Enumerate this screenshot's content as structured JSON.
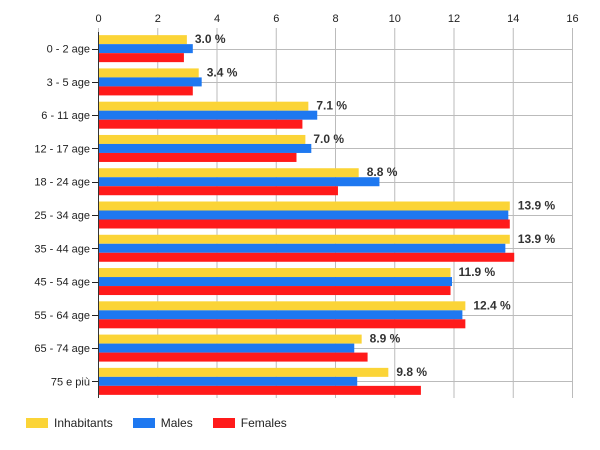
{
  "chart_data": {
    "type": "bar",
    "orientation": "horizontal",
    "title": "",
    "xlabel": "",
    "ylabel": "",
    "xlim": [
      0,
      16
    ],
    "xticks": [
      0,
      2,
      4,
      6,
      8,
      10,
      12,
      14,
      16
    ],
    "grid": true,
    "legend_position": "bottom-left",
    "categories": [
      "0 - 2 age",
      "3 - 5 age",
      "6 - 11 age",
      "12 - 17 age",
      "18 - 24 age",
      "25 - 34 age",
      "35 - 44 age",
      "45 - 54 age",
      "55 - 64 age",
      "65 - 74 age",
      "75 e più"
    ],
    "series": [
      {
        "name": "Inhabitants",
        "color": "#FBD437",
        "values": [
          3.0,
          3.4,
          7.1,
          7.0,
          8.8,
          13.9,
          13.9,
          11.9,
          12.4,
          8.9,
          9.8
        ]
      },
      {
        "name": "Males",
        "color": "#1E78F0",
        "values": [
          3.2,
          3.5,
          7.4,
          7.2,
          9.5,
          13.85,
          13.75,
          11.95,
          12.3,
          8.65,
          8.75
        ]
      },
      {
        "name": "Females",
        "color": "#FF1A1A",
        "values": [
          2.9,
          3.2,
          6.9,
          6.7,
          8.1,
          13.9,
          14.05,
          11.9,
          12.4,
          9.1,
          10.9
        ]
      }
    ],
    "data_labels": [
      "3.0 %",
      "3.4 %",
      "7.1 %",
      "7.0 %",
      "8.8 %",
      "13.9 %",
      "13.9 %",
      "11.9 %",
      "12.4 %",
      "8.9 %",
      "9.8 %"
    ]
  }
}
